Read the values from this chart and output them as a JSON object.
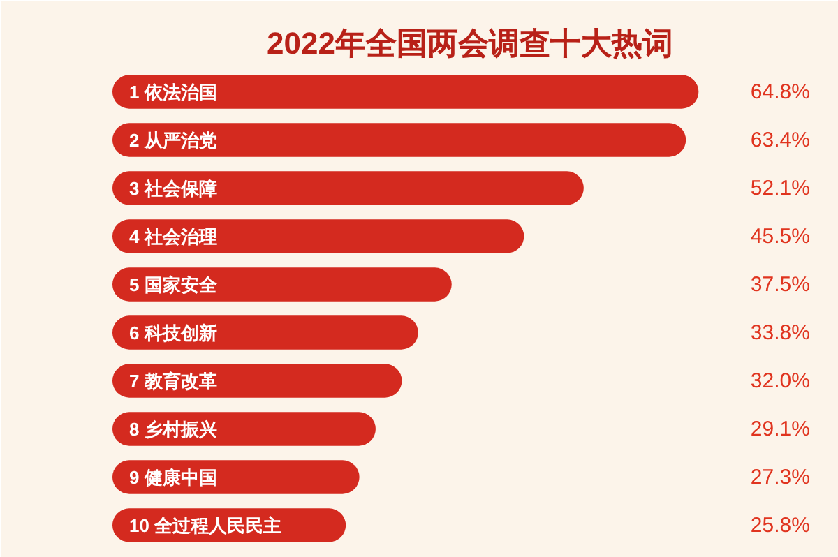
{
  "chart_data": {
    "type": "bar",
    "orientation": "horizontal",
    "title": "2022年全国两会调查十大热词",
    "categories": [
      "1 依法治国",
      "2 从严治党",
      "3 社会保障",
      "4 社会治理",
      "5 国家安全",
      "6 科技创新",
      "7 教育改革",
      "8 乡村振兴",
      "9 健康中国",
      "10 全过程人民民主"
    ],
    "values": [
      64.8,
      63.4,
      52.1,
      45.5,
      37.5,
      33.8,
      32.0,
      29.1,
      27.3,
      25.8
    ],
    "value_labels": [
      "64.8%",
      "63.4%",
      "52.1%",
      "45.5%",
      "37.5%",
      "33.8%",
      "32.0%",
      "29.1%",
      "27.3%",
      "25.8%"
    ],
    "color": "#d42a1f",
    "grid": false
  }
}
